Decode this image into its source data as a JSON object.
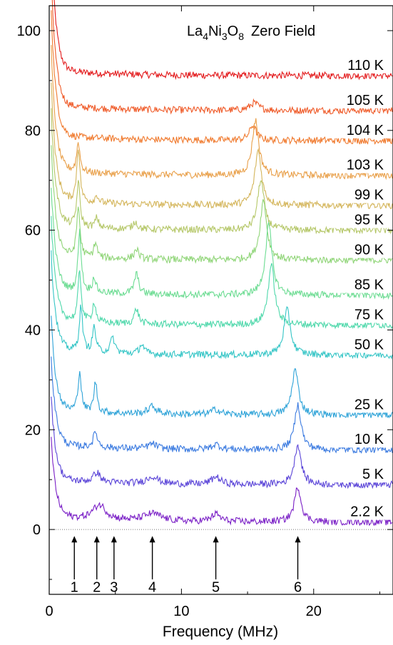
{
  "chart_data": {
    "type": "line",
    "title_main": "La",
    "title_sub1": "4",
    "title_mid1": "Ni",
    "title_sub2": "3",
    "title_mid2": "O",
    "title_sub3": "8",
    "title_tail": "Zero Field",
    "xlabel": "Frequency (MHz)",
    "ylabel": "",
    "xlim": [
      0,
      26
    ],
    "ylim": [
      -13,
      105
    ],
    "x_ticks": [
      {
        "value": 0,
        "label": "0"
      },
      {
        "value": 10,
        "label": "10"
      },
      {
        "value": 20,
        "label": "20"
      }
    ],
    "y_ticks": [
      {
        "value": 0,
        "label": "0"
      },
      {
        "value": 20,
        "label": "20"
      },
      {
        "value": 40,
        "label": "40"
      },
      {
        "value": 60,
        "label": "60"
      },
      {
        "value": 80,
        "label": "80"
      },
      {
        "value": 100,
        "label": "100"
      }
    ],
    "zero_line": true,
    "markers": [
      {
        "x": 1.9,
        "label": "1"
      },
      {
        "x": 3.6,
        "label": "2"
      },
      {
        "x": 4.9,
        "label": "3"
      },
      {
        "x": 7.8,
        "label": "4"
      },
      {
        "x": 12.6,
        "label": "5"
      },
      {
        "x": 18.8,
        "label": "6"
      }
    ],
    "series": [
      {
        "name": "110 K",
        "color": "#e31a1c",
        "baseline": 91,
        "peaks": []
      },
      {
        "name": "105 K",
        "color": "#ef5a28",
        "baseline": 84,
        "peaks": [
          [
            15.5,
            1.5,
            0.4
          ]
        ]
      },
      {
        "name": "104 K",
        "color": "#f07a2e",
        "baseline": 78,
        "peaks": [
          [
            15.4,
            3,
            0.3
          ]
        ]
      },
      {
        "name": "103 K",
        "color": "#e9a04a",
        "baseline": 71,
        "peaks": [
          [
            2.2,
            6,
            0.15
          ],
          [
            15.6,
            11,
            0.3
          ]
        ]
      },
      {
        "name": "99 K",
        "color": "#d4b55a",
        "baseline": 65,
        "peaks": [
          [
            2.2,
            11,
            0.15
          ],
          [
            3.6,
            1.5,
            0.15
          ],
          [
            15.8,
            11,
            0.3
          ]
        ]
      },
      {
        "name": "95 K",
        "color": "#b5c768",
        "baseline": 60,
        "peaks": [
          [
            2.2,
            9,
            0.15
          ],
          [
            3.6,
            2,
            0.15
          ],
          [
            6.5,
            1.5,
            0.2
          ],
          [
            16.0,
            10,
            0.3
          ]
        ]
      },
      {
        "name": "90 K",
        "color": "#90d578",
        "baseline": 54,
        "peaks": [
          [
            2.2,
            10,
            0.15
          ],
          [
            3.5,
            3,
            0.15
          ],
          [
            6.6,
            2,
            0.2
          ],
          [
            16.2,
            12,
            0.3
          ]
        ]
      },
      {
        "name": "85 K",
        "color": "#6cdc92",
        "baseline": 47,
        "peaks": [
          [
            2.3,
            12,
            0.15
          ],
          [
            3.4,
            3,
            0.15
          ],
          [
            6.6,
            4,
            0.2
          ],
          [
            16.6,
            14,
            0.3
          ]
        ]
      },
      {
        "name": "75 K",
        "color": "#4fd8ab",
        "baseline": 41,
        "peaks": [
          [
            2.3,
            10,
            0.15
          ],
          [
            3.4,
            4,
            0.15
          ],
          [
            6.6,
            3,
            0.2
          ],
          [
            16.8,
            12,
            0.3
          ]
        ]
      },
      {
        "name": "50 K",
        "color": "#34c5c6",
        "baseline": 35,
        "peaks": [
          [
            2.4,
            9,
            0.15
          ],
          [
            3.4,
            5,
            0.15
          ],
          [
            4.8,
            3,
            0.2
          ],
          [
            7.0,
            2,
            0.2
          ],
          [
            18.0,
            9,
            0.3
          ]
        ]
      },
      {
        "name": "25 K",
        "color": "#2ea3d8",
        "baseline": 23,
        "peaks": [
          [
            2.3,
            8,
            0.15
          ],
          [
            3.5,
            6,
            0.15
          ],
          [
            7.8,
            1.5,
            0.4
          ],
          [
            12.6,
            1,
            0.4
          ],
          [
            18.6,
            9,
            0.3
          ]
        ]
      },
      {
        "name": "10 K",
        "color": "#3a7ae0",
        "baseline": 16,
        "peaks": [
          [
            3.5,
            3,
            0.2
          ],
          [
            7.8,
            1,
            0.4
          ],
          [
            12.6,
            1,
            0.4
          ],
          [
            18.8,
            9,
            0.3
          ]
        ]
      },
      {
        "name": "5 K",
        "color": "#5b45d8",
        "baseline": 9,
        "peaks": [
          [
            3.6,
            2,
            0.3
          ],
          [
            7.8,
            1.5,
            0.5
          ],
          [
            12.6,
            1.5,
            0.4
          ],
          [
            18.8,
            8,
            0.3
          ]
        ]
      },
      {
        "name": "2.2 K",
        "color": "#7a1fc6",
        "baseline": 1.5,
        "peaks": [
          [
            3.8,
            3,
            0.6
          ],
          [
            7.8,
            1.5,
            0.8
          ],
          [
            12.6,
            1.5,
            0.4
          ],
          [
            18.8,
            7,
            0.3
          ]
        ]
      }
    ]
  }
}
